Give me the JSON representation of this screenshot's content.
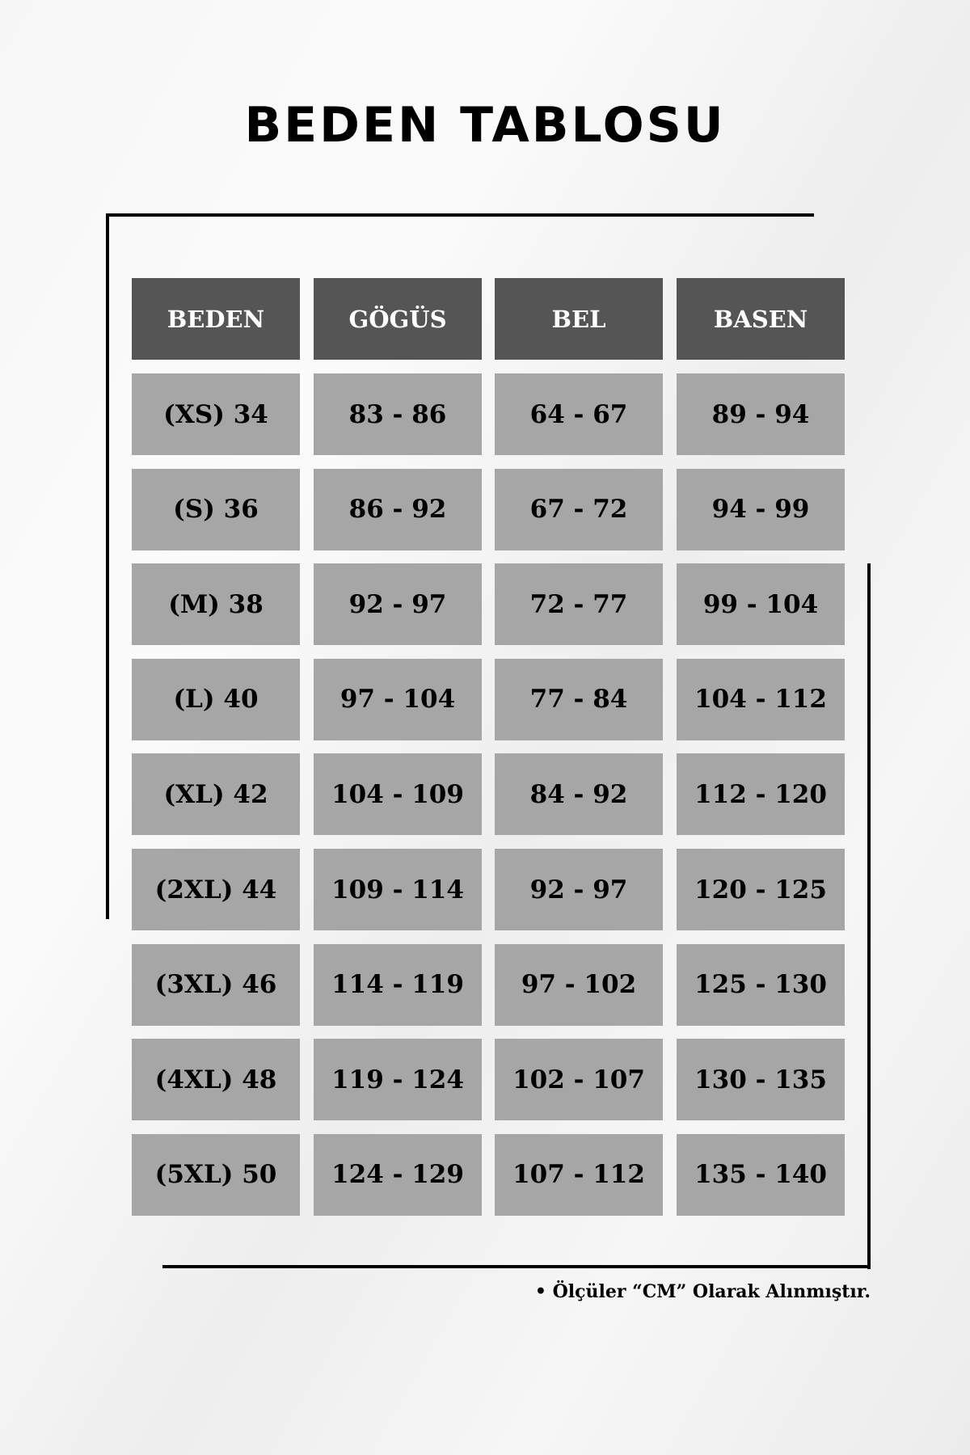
{
  "title": "BEDEN TABLOSU",
  "colors": {
    "header_bg": "#555555",
    "cell_bg": "#a6a6a6",
    "frame": "#000000"
  },
  "table": {
    "headers": [
      "BEDEN",
      "GÖGÜS",
      "BEL",
      "BASEN"
    ],
    "rows": [
      [
        "(XS) 34",
        "83 - 86",
        "64 - 67",
        "89 - 94"
      ],
      [
        "(S) 36",
        "86 - 92",
        "67 - 72",
        "94 - 99"
      ],
      [
        "(M) 38",
        "92 - 97",
        "72 - 77",
        "99 - 104"
      ],
      [
        "(L) 40",
        "97 - 104",
        "77 - 84",
        "104 - 112"
      ],
      [
        "(XL) 42",
        "104 - 109",
        "84 - 92",
        "112 - 120"
      ],
      [
        "(2XL) 44",
        "109 - 114",
        "92 - 97",
        "120 - 125"
      ],
      [
        "(3XL) 46",
        "114 - 119",
        "97 - 102",
        "125 - 130"
      ],
      [
        "(4XL) 48",
        "119 - 124",
        "102 - 107",
        "130 - 135"
      ],
      [
        "(5XL) 50",
        "124 - 129",
        "107 - 112",
        "135 - 140"
      ]
    ]
  },
  "footnote": "• Ölçüler “CM” Olarak Alınmıştır."
}
